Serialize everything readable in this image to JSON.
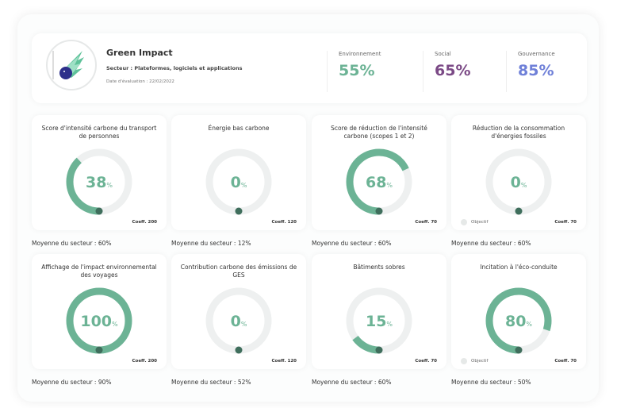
{
  "header": {
    "company": "Green Impact",
    "sector": "Secteur : Plateformes, logiciels et applications",
    "date": "Date d'évaluation : 22/02/2022",
    "scores": [
      {
        "label": "Environnement",
        "value": "55%",
        "color": "#6cb395"
      },
      {
        "label": "Social",
        "value": "65%",
        "color": "#7b4a86"
      },
      {
        "label": "Gouvernance",
        "value": "85%",
        "color": "#6f80d8"
      }
    ]
  },
  "colors": {
    "progress": "#6cb395",
    "track": "#eef0f0",
    "dot": "#3f6e5c",
    "value_text": "#6cb395"
  },
  "cards": [
    {
      "title": "Score d'intensité carbone du transport de personnes",
      "value": 38,
      "coeff": "Coeff. 200",
      "objective": null,
      "average": "Moyenne du secteur : 60%"
    },
    {
      "title": "Énergie bas carbone",
      "value": 0,
      "coeff": "Coeff. 120",
      "objective": null,
      "average": "Moyenne du secteur : 12%"
    },
    {
      "title": "Score de réduction de l'intensité carbone (scopes 1 et 2)",
      "value": 68,
      "coeff": "Coeff. 70",
      "objective": null,
      "average": "Moyenne du secteur : 60%"
    },
    {
      "title": "Réduction de la consommation d'énergies fossiles",
      "value": 0,
      "coeff": "Coeff. 70",
      "objective": "Objectif",
      "average": "Moyenne du secteur : 60%"
    },
    {
      "title": "Affichage de l'impact environnemental des voyages",
      "value": 100,
      "coeff": "Coeff. 200",
      "objective": null,
      "average": "Moyenne du secteur : 90%"
    },
    {
      "title": "Contribution carbone des émissions de GES",
      "value": 0,
      "coeff": "Coeff. 120",
      "objective": null,
      "average": "Moyenne du secteur : 52%"
    },
    {
      "title": "Bâtiments sobres",
      "value": 15,
      "coeff": "Coeff. 70",
      "objective": null,
      "average": "Moyenne du secteur : 60%"
    },
    {
      "title": "Incitation à l'éco-conduite",
      "value": 80,
      "coeff": "Coeff. 70",
      "objective": "Objectif",
      "average": "Moyenne du secteur : 50%"
    }
  ],
  "percent_sign": "%"
}
